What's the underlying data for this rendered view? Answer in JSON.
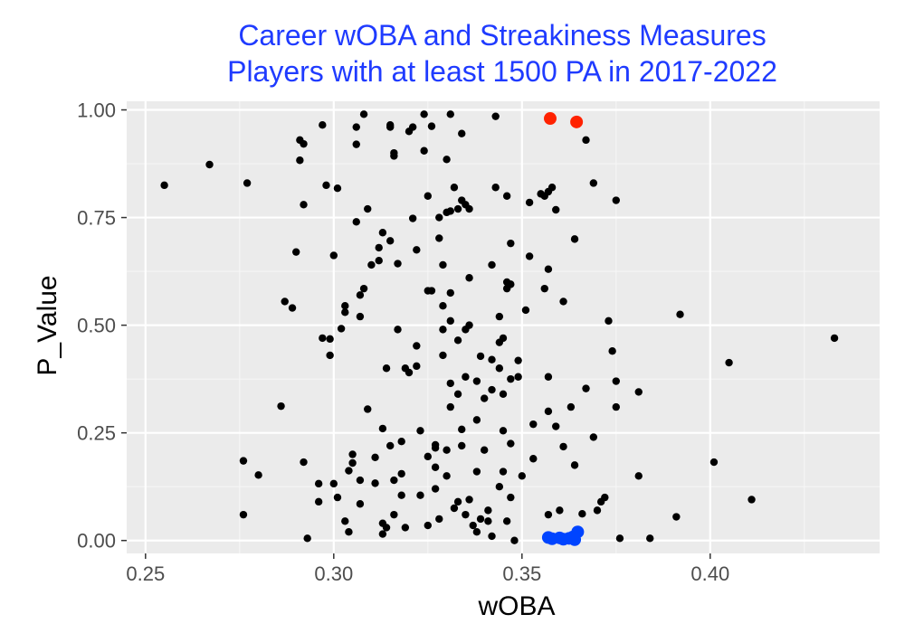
{
  "chart_data": {
    "type": "scatter",
    "title": [
      "Career wOBA and Streakiness Measures",
      "Players with at least 1500 PA in 2017-2022"
    ],
    "xlabel": "wOBA",
    "ylabel": "P_Value",
    "xlim": [
      0.245,
      0.445
    ],
    "ylim": [
      -0.03,
      1.02
    ],
    "x_ticks": [
      0.25,
      0.3,
      0.35,
      0.4
    ],
    "x_tick_labels": [
      "0.25",
      "0.30",
      "0.35",
      "0.40"
    ],
    "y_ticks": [
      0.0,
      0.25,
      0.5,
      0.75,
      1.0
    ],
    "y_tick_labels": [
      "0.00",
      "0.25",
      "0.50",
      "0.75",
      "1.00"
    ],
    "grid": true,
    "background": "#ebebeb",
    "series": [
      {
        "color": "#000000",
        "points": [
          [
            0.255,
            0.825
          ],
          [
            0.267,
            0.873
          ],
          [
            0.276,
            0.185
          ],
          [
            0.277,
            0.83
          ],
          [
            0.276,
            0.06
          ],
          [
            0.28,
            0.152
          ],
          [
            0.286,
            0.312
          ],
          [
            0.287,
            0.555
          ],
          [
            0.289,
            0.54
          ],
          [
            0.29,
            0.67
          ],
          [
            0.291,
            0.883
          ],
          [
            0.291,
            0.93
          ],
          [
            0.292,
            0.921
          ],
          [
            0.292,
            0.78
          ],
          [
            0.292,
            0.182
          ],
          [
            0.293,
            0.005
          ],
          [
            0.297,
            0.965
          ],
          [
            0.297,
            0.47
          ],
          [
            0.296,
            0.132
          ],
          [
            0.296,
            0.09
          ],
          [
            0.298,
            0.825
          ],
          [
            0.299,
            0.468
          ],
          [
            0.299,
            0.43
          ],
          [
            0.3,
            0.662
          ],
          [
            0.301,
            0.818
          ],
          [
            0.3,
            0.132
          ],
          [
            0.301,
            0.1
          ],
          [
            0.302,
            0.492
          ],
          [
            0.303,
            0.545
          ],
          [
            0.303,
            0.53
          ],
          [
            0.303,
            0.045
          ],
          [
            0.304,
            0.162
          ],
          [
            0.305,
            0.2
          ],
          [
            0.305,
            0.18
          ],
          [
            0.304,
            0.02
          ],
          [
            0.306,
            0.96
          ],
          [
            0.306,
            0.92
          ],
          [
            0.306,
            0.74
          ],
          [
            0.307,
            0.52
          ],
          [
            0.307,
            0.57
          ],
          [
            0.307,
            0.14
          ],
          [
            0.307,
            0.085
          ],
          [
            0.308,
            0.99
          ],
          [
            0.308,
            0.585
          ],
          [
            0.309,
            0.305
          ],
          [
            0.309,
            0.77
          ],
          [
            0.31,
            0.64
          ],
          [
            0.311,
            0.133
          ],
          [
            0.311,
            0.193
          ],
          [
            0.312,
            0.65
          ],
          [
            0.312,
            0.68
          ],
          [
            0.313,
            0.715
          ],
          [
            0.313,
            0.26
          ],
          [
            0.313,
            0.015
          ],
          [
            0.313,
            0.04
          ],
          [
            0.314,
            0.03
          ],
          [
            0.315,
            0.696
          ],
          [
            0.314,
            0.4
          ],
          [
            0.315,
            0.96
          ],
          [
            0.315,
            0.965
          ],
          [
            0.316,
            0.9
          ],
          [
            0.316,
            0.893
          ],
          [
            0.315,
            0.22
          ],
          [
            0.316,
            0.14
          ],
          [
            0.316,
            0.06
          ],
          [
            0.317,
            0.643
          ],
          [
            0.317,
            0.49
          ],
          [
            0.318,
            0.23
          ],
          [
            0.318,
            0.155
          ],
          [
            0.318,
            0.105
          ],
          [
            0.319,
            0.03
          ],
          [
            0.319,
            0.4
          ],
          [
            0.32,
            0.39
          ],
          [
            0.32,
            0.95
          ],
          [
            0.321,
            0.96
          ],
          [
            0.321,
            0.748
          ],
          [
            0.322,
            0.675
          ],
          [
            0.322,
            0.452
          ],
          [
            0.322,
            0.405
          ],
          [
            0.323,
            0.255
          ],
          [
            0.323,
            0.105
          ],
          [
            0.324,
            0.99
          ],
          [
            0.324,
            0.905
          ],
          [
            0.325,
            0.8
          ],
          [
            0.325,
            0.58
          ],
          [
            0.325,
            0.035
          ],
          [
            0.325,
            0.195
          ],
          [
            0.326,
            0.962
          ],
          [
            0.326,
            0.58
          ],
          [
            0.327,
            0.222
          ],
          [
            0.327,
            0.215
          ],
          [
            0.327,
            0.17
          ],
          [
            0.327,
            0.12
          ],
          [
            0.328,
            0.75
          ],
          [
            0.328,
            0.702
          ],
          [
            0.329,
            0.64
          ],
          [
            0.329,
            0.545
          ],
          [
            0.329,
            0.49
          ],
          [
            0.329,
            0.43
          ],
          [
            0.328,
            0.05
          ],
          [
            0.33,
            0.885
          ],
          [
            0.33,
            0.762
          ],
          [
            0.33,
            0.21
          ],
          [
            0.33,
            0.15
          ],
          [
            0.331,
            0.99
          ],
          [
            0.331,
            0.765
          ],
          [
            0.331,
            0.575
          ],
          [
            0.331,
            0.51
          ],
          [
            0.331,
            0.365
          ],
          [
            0.331,
            0.31
          ],
          [
            0.332,
            0.82
          ],
          [
            0.332,
            0.075
          ],
          [
            0.333,
            0.77
          ],
          [
            0.333,
            0.09
          ],
          [
            0.333,
            0.465
          ],
          [
            0.333,
            0.34
          ],
          [
            0.334,
            0.945
          ],
          [
            0.334,
            0.79
          ],
          [
            0.334,
            0.258
          ],
          [
            0.334,
            0.22
          ],
          [
            0.335,
            0.78
          ],
          [
            0.335,
            0.49
          ],
          [
            0.335,
            0.38
          ],
          [
            0.335,
            0.06
          ],
          [
            0.336,
            0.77
          ],
          [
            0.336,
            0.61
          ],
          [
            0.336,
            0.5
          ],
          [
            0.336,
            0.095
          ],
          [
            0.337,
            0.035
          ],
          [
            0.338,
            0.02
          ],
          [
            0.338,
            0.37
          ],
          [
            0.338,
            0.28
          ],
          [
            0.338,
            0.16
          ],
          [
            0.339,
            0.428
          ],
          [
            0.339,
            0.05
          ],
          [
            0.34,
            0.33
          ],
          [
            0.34,
            0.21
          ],
          [
            0.341,
            0.07
          ],
          [
            0.341,
            0.045
          ],
          [
            0.342,
            0.64
          ],
          [
            0.342,
            0.42
          ],
          [
            0.342,
            0.35
          ],
          [
            0.342,
            0.01
          ],
          [
            0.343,
            0.985
          ],
          [
            0.343,
            0.82
          ],
          [
            0.344,
            0.52
          ],
          [
            0.344,
            0.46
          ],
          [
            0.344,
            0.4
          ],
          [
            0.344,
            0.125
          ],
          [
            0.345,
            0.47
          ],
          [
            0.345,
            0.34
          ],
          [
            0.345,
            0.255
          ],
          [
            0.345,
            0.16
          ],
          [
            0.346,
            0.8
          ],
          [
            0.346,
            0.6
          ],
          [
            0.346,
            0.585
          ],
          [
            0.346,
            0.045
          ],
          [
            0.347,
            0.69
          ],
          [
            0.347,
            0.595
          ],
          [
            0.347,
            0.375
          ],
          [
            0.347,
            0.225
          ],
          [
            0.347,
            0.1
          ],
          [
            0.348,
            0.0
          ],
          [
            0.349,
            0.418
          ],
          [
            0.349,
            0.38
          ],
          [
            0.35,
            0.15
          ],
          [
            0.351,
            0.535
          ],
          [
            0.352,
            0.66
          ],
          [
            0.352,
            0.785
          ],
          [
            0.353,
            0.27
          ],
          [
            0.353,
            0.19
          ],
          [
            0.355,
            0.805
          ],
          [
            0.356,
            0.585
          ],
          [
            0.356,
            0.8
          ],
          [
            0.357,
            0.81
          ],
          [
            0.357,
            0.63
          ],
          [
            0.357,
            0.38
          ],
          [
            0.357,
            0.3
          ],
          [
            0.357,
            0.06
          ],
          [
            0.358,
            0.82
          ],
          [
            0.359,
            0.768
          ],
          [
            0.359,
            0.265
          ],
          [
            0.36,
            0.07
          ],
          [
            0.361,
            0.555
          ],
          [
            0.361,
            0.218
          ],
          [
            0.363,
            0.31
          ],
          [
            0.364,
            0.7
          ],
          [
            0.364,
            0.175
          ],
          [
            0.366,
            0.062
          ],
          [
            0.367,
            0.93
          ],
          [
            0.367,
            0.353
          ],
          [
            0.369,
            0.83
          ],
          [
            0.369,
            0.24
          ],
          [
            0.37,
            0.07
          ],
          [
            0.371,
            0.09
          ],
          [
            0.372,
            0.1
          ],
          [
            0.373,
            0.51
          ],
          [
            0.374,
            0.44
          ],
          [
            0.375,
            0.79
          ],
          [
            0.375,
            0.37
          ],
          [
            0.375,
            0.31
          ],
          [
            0.376,
            0.005
          ],
          [
            0.381,
            0.15
          ],
          [
            0.381,
            0.345
          ],
          [
            0.384,
            0.005
          ],
          [
            0.391,
            0.055
          ],
          [
            0.392,
            0.525
          ],
          [
            0.401,
            0.182
          ],
          [
            0.405,
            0.413
          ],
          [
            0.411,
            0.095
          ],
          [
            0.433,
            0.47
          ]
        ]
      },
      {
        "color": "#ff2200",
        "points": [
          [
            0.3575,
            0.98
          ],
          [
            0.3645,
            0.972
          ]
        ]
      },
      {
        "color": "#0044ff",
        "points": [
          [
            0.357,
            0.007
          ],
          [
            0.358,
            0.004
          ],
          [
            0.36,
            0.006
          ],
          [
            0.361,
            0.003
          ],
          [
            0.3625,
            0.005
          ],
          [
            0.3635,
            0.008
          ],
          [
            0.364,
            0.002
          ],
          [
            0.3648,
            0.02
          ]
        ]
      }
    ]
  }
}
